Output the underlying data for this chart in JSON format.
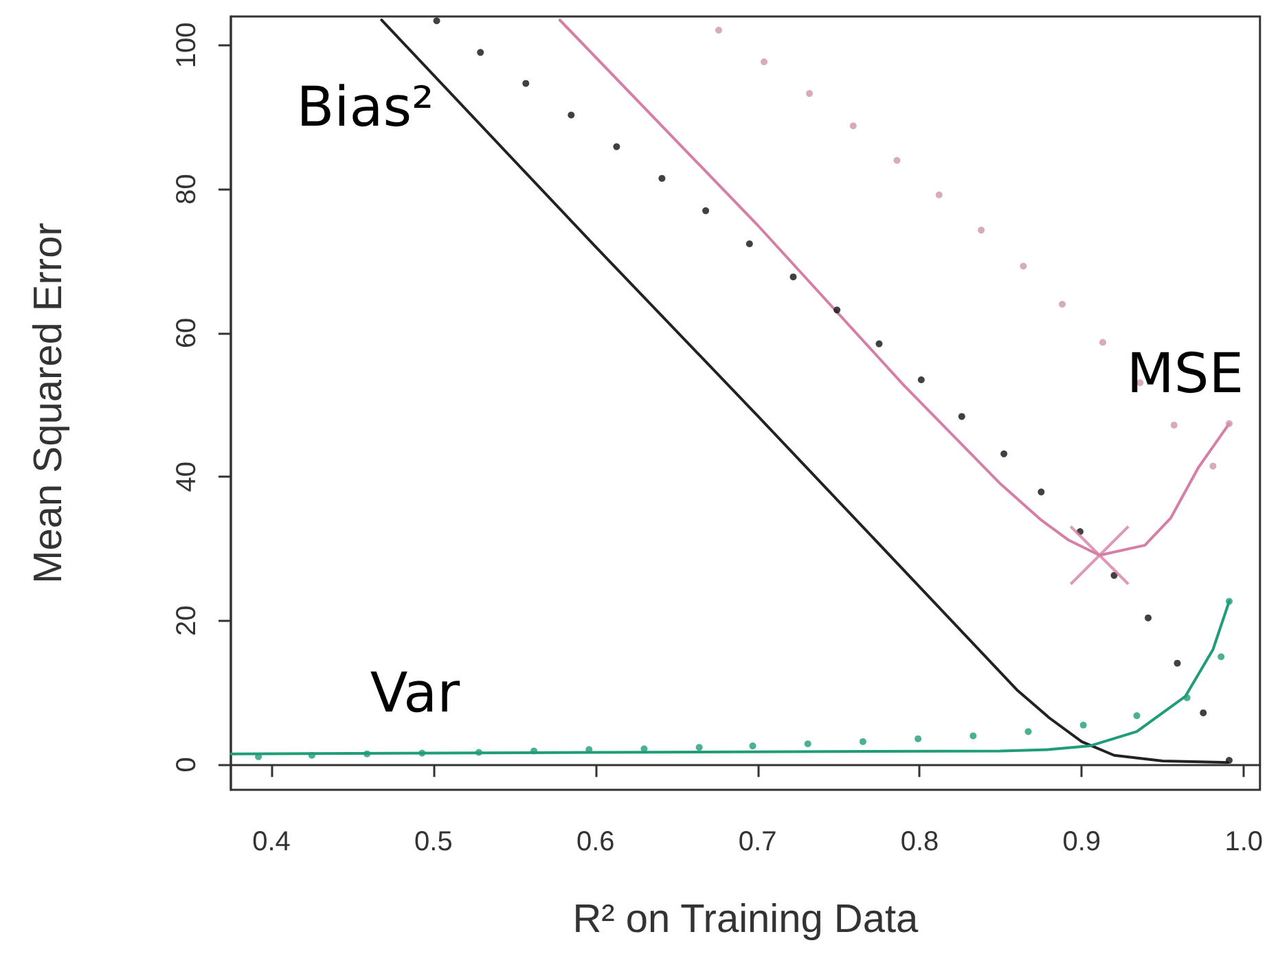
{
  "chart_data": {
    "type": "line",
    "xlabel": "R² on Training Data",
    "ylabel": "Mean Squared Error",
    "xlim": [
      0.375,
      1.01
    ],
    "xticks": [
      0.4,
      0.5,
      0.6,
      0.7,
      0.8,
      0.9,
      {
        "value": 1,
        "label": "1.0"
      }
    ],
    "ylim": [
      -3.5,
      104
    ],
    "yticks": [
      0,
      20,
      40,
      60,
      80,
      100
    ],
    "series": [
      {
        "name": "Bias²",
        "color": "#222222",
        "marker": "none",
        "line_style": "solid",
        "x": [
          0.468,
          0.6,
          0.7,
          0.8,
          0.86,
          0.88,
          0.9,
          0.92,
          0.95,
          0.99
        ],
        "values": [
          103.5,
          72,
          48.5,
          24.7,
          10.4,
          6.5,
          3.2,
          1.3,
          0.5,
          0.3
        ]
      },
      {
        "type": "scatter",
        "color": "#111111",
        "marker": "circle",
        "x": [
          0.502,
          0.529,
          0.557,
          0.585,
          0.613,
          0.641,
          0.668,
          0.695,
          0.722,
          0.749,
          0.775,
          0.801,
          0.826,
          0.852,
          0.875,
          0.899,
          0.92,
          0.941,
          0.959,
          0.975,
          0.991
        ],
        "values": [
          103.4,
          99,
          94.7,
          90.3,
          85.9,
          81.5,
          77,
          72.4,
          67.8,
          63.2,
          58.5,
          53.5,
          48.4,
          43.2,
          37.9,
          32.4,
          26.3,
          20.4,
          14.1,
          7.2,
          0.6
        ]
      },
      {
        "name": "MSE",
        "color": "#d77ea6",
        "marker": "none",
        "line_style": "solid",
        "x": [
          0.578,
          0.7,
          0.79,
          0.85,
          0.875,
          0.892,
          0.911,
          0.939,
          0.955,
          0.972,
          0.991
        ],
        "values": [
          103.5,
          75,
          52.8,
          39,
          34,
          31.2,
          29.1,
          30.5,
          34.3,
          41.3,
          47.4
        ]
      },
      {
        "type": "scatter",
        "color": "#cf94ab",
        "marker": "circle",
        "x": [
          0.676,
          0.704,
          0.732,
          0.759,
          0.786,
          0.812,
          0.838,
          0.864,
          0.888,
          0.913,
          0.936,
          0.957,
          0.981,
          0.991
        ],
        "values": [
          102.1,
          97.7,
          93.3,
          88.8,
          84,
          79.2,
          74.3,
          69.3,
          64,
          58.7,
          53.1,
          47.2,
          41.5,
          47.4
        ]
      },
      {
        "type": "scatter",
        "color": "#d77ea6",
        "marker": "cross",
        "x": [
          0.911
        ],
        "values": [
          29.1
        ]
      },
      {
        "name": "Var",
        "color": "#1f9c78",
        "marker": "none",
        "line_style": "solid",
        "x": [
          0.375,
          0.6,
          0.85,
          0.88,
          0.905,
          0.934,
          0.964,
          0.981,
          0.991
        ],
        "values": [
          1.5,
          1.7,
          1.9,
          2.1,
          2.6,
          4.6,
          9.5,
          16,
          22.7
        ]
      },
      {
        "type": "scatter",
        "color": "#1f9c78",
        "marker": "circle",
        "x": [
          0.392,
          0.425,
          0.459,
          0.493,
          0.528,
          0.562,
          0.596,
          0.63,
          0.664,
          0.697,
          0.731,
          0.765,
          0.799,
          0.833,
          0.867,
          0.901,
          0.934,
          0.965,
          0.986,
          0.991
        ],
        "values": [
          1.1,
          1.3,
          1.5,
          1.6,
          1.7,
          1.9,
          2.1,
          2.2,
          2.4,
          2.6,
          2.9,
          3.2,
          3.6,
          4,
          4.6,
          5.5,
          6.8,
          9.3,
          15,
          22.7
        ]
      }
    ]
  }
}
